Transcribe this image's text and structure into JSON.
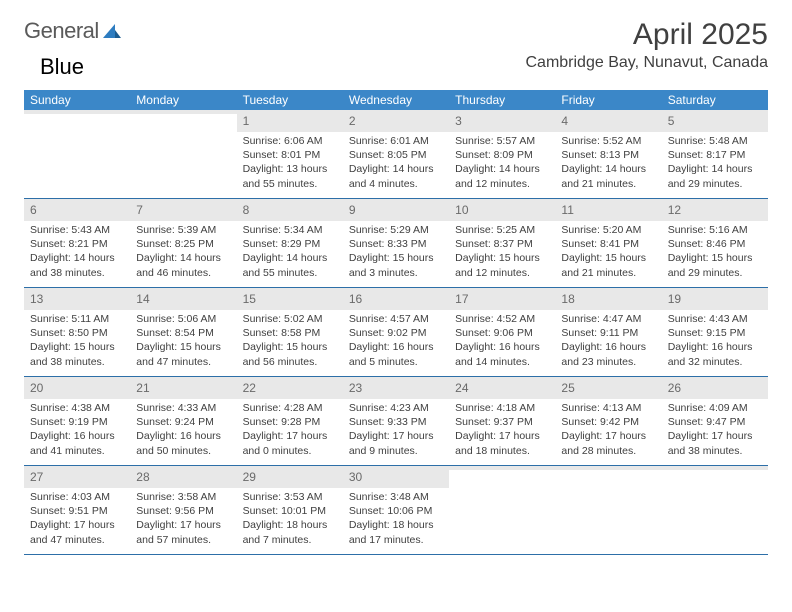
{
  "brand": {
    "part1": "General",
    "part2": "Blue"
  },
  "title": "April 2025",
  "location": "Cambridge Bay, Nunavut, Canada",
  "colors": {
    "header_bg": "#3b87c8",
    "header_text": "#ffffff",
    "num_bg": "#e8e8e8",
    "num_text": "#6a6a6a",
    "body_text": "#404040",
    "week_border": "#2d6fa8",
    "logo_gray": "#5a5a5a",
    "logo_blue": "#2d7cc0"
  },
  "day_names": [
    "Sunday",
    "Monday",
    "Tuesday",
    "Wednesday",
    "Thursday",
    "Friday",
    "Saturday"
  ],
  "weeks": [
    [
      {
        "empty": true
      },
      {
        "empty": true
      },
      {
        "num": "1",
        "sunrise": "Sunrise: 6:06 AM",
        "sunset": "Sunset: 8:01 PM",
        "daylight": "Daylight: 13 hours and 55 minutes."
      },
      {
        "num": "2",
        "sunrise": "Sunrise: 6:01 AM",
        "sunset": "Sunset: 8:05 PM",
        "daylight": "Daylight: 14 hours and 4 minutes."
      },
      {
        "num": "3",
        "sunrise": "Sunrise: 5:57 AM",
        "sunset": "Sunset: 8:09 PM",
        "daylight": "Daylight: 14 hours and 12 minutes."
      },
      {
        "num": "4",
        "sunrise": "Sunrise: 5:52 AM",
        "sunset": "Sunset: 8:13 PM",
        "daylight": "Daylight: 14 hours and 21 minutes."
      },
      {
        "num": "5",
        "sunrise": "Sunrise: 5:48 AM",
        "sunset": "Sunset: 8:17 PM",
        "daylight": "Daylight: 14 hours and 29 minutes."
      }
    ],
    [
      {
        "num": "6",
        "sunrise": "Sunrise: 5:43 AM",
        "sunset": "Sunset: 8:21 PM",
        "daylight": "Daylight: 14 hours and 38 minutes."
      },
      {
        "num": "7",
        "sunrise": "Sunrise: 5:39 AM",
        "sunset": "Sunset: 8:25 PM",
        "daylight": "Daylight: 14 hours and 46 minutes."
      },
      {
        "num": "8",
        "sunrise": "Sunrise: 5:34 AM",
        "sunset": "Sunset: 8:29 PM",
        "daylight": "Daylight: 14 hours and 55 minutes."
      },
      {
        "num": "9",
        "sunrise": "Sunrise: 5:29 AM",
        "sunset": "Sunset: 8:33 PM",
        "daylight": "Daylight: 15 hours and 3 minutes."
      },
      {
        "num": "10",
        "sunrise": "Sunrise: 5:25 AM",
        "sunset": "Sunset: 8:37 PM",
        "daylight": "Daylight: 15 hours and 12 minutes."
      },
      {
        "num": "11",
        "sunrise": "Sunrise: 5:20 AM",
        "sunset": "Sunset: 8:41 PM",
        "daylight": "Daylight: 15 hours and 21 minutes."
      },
      {
        "num": "12",
        "sunrise": "Sunrise: 5:16 AM",
        "sunset": "Sunset: 8:46 PM",
        "daylight": "Daylight: 15 hours and 29 minutes."
      }
    ],
    [
      {
        "num": "13",
        "sunrise": "Sunrise: 5:11 AM",
        "sunset": "Sunset: 8:50 PM",
        "daylight": "Daylight: 15 hours and 38 minutes."
      },
      {
        "num": "14",
        "sunrise": "Sunrise: 5:06 AM",
        "sunset": "Sunset: 8:54 PM",
        "daylight": "Daylight: 15 hours and 47 minutes."
      },
      {
        "num": "15",
        "sunrise": "Sunrise: 5:02 AM",
        "sunset": "Sunset: 8:58 PM",
        "daylight": "Daylight: 15 hours and 56 minutes."
      },
      {
        "num": "16",
        "sunrise": "Sunrise: 4:57 AM",
        "sunset": "Sunset: 9:02 PM",
        "daylight": "Daylight: 16 hours and 5 minutes."
      },
      {
        "num": "17",
        "sunrise": "Sunrise: 4:52 AM",
        "sunset": "Sunset: 9:06 PM",
        "daylight": "Daylight: 16 hours and 14 minutes."
      },
      {
        "num": "18",
        "sunrise": "Sunrise: 4:47 AM",
        "sunset": "Sunset: 9:11 PM",
        "daylight": "Daylight: 16 hours and 23 minutes."
      },
      {
        "num": "19",
        "sunrise": "Sunrise: 4:43 AM",
        "sunset": "Sunset: 9:15 PM",
        "daylight": "Daylight: 16 hours and 32 minutes."
      }
    ],
    [
      {
        "num": "20",
        "sunrise": "Sunrise: 4:38 AM",
        "sunset": "Sunset: 9:19 PM",
        "daylight": "Daylight: 16 hours and 41 minutes."
      },
      {
        "num": "21",
        "sunrise": "Sunrise: 4:33 AM",
        "sunset": "Sunset: 9:24 PM",
        "daylight": "Daylight: 16 hours and 50 minutes."
      },
      {
        "num": "22",
        "sunrise": "Sunrise: 4:28 AM",
        "sunset": "Sunset: 9:28 PM",
        "daylight": "Daylight: 17 hours and 0 minutes."
      },
      {
        "num": "23",
        "sunrise": "Sunrise: 4:23 AM",
        "sunset": "Sunset: 9:33 PM",
        "daylight": "Daylight: 17 hours and 9 minutes."
      },
      {
        "num": "24",
        "sunrise": "Sunrise: 4:18 AM",
        "sunset": "Sunset: 9:37 PM",
        "daylight": "Daylight: 17 hours and 18 minutes."
      },
      {
        "num": "25",
        "sunrise": "Sunrise: 4:13 AM",
        "sunset": "Sunset: 9:42 PM",
        "daylight": "Daylight: 17 hours and 28 minutes."
      },
      {
        "num": "26",
        "sunrise": "Sunrise: 4:09 AM",
        "sunset": "Sunset: 9:47 PM",
        "daylight": "Daylight: 17 hours and 38 minutes."
      }
    ],
    [
      {
        "num": "27",
        "sunrise": "Sunrise: 4:03 AM",
        "sunset": "Sunset: 9:51 PM",
        "daylight": "Daylight: 17 hours and 47 minutes."
      },
      {
        "num": "28",
        "sunrise": "Sunrise: 3:58 AM",
        "sunset": "Sunset: 9:56 PM",
        "daylight": "Daylight: 17 hours and 57 minutes."
      },
      {
        "num": "29",
        "sunrise": "Sunrise: 3:53 AM",
        "sunset": "Sunset: 10:01 PM",
        "daylight": "Daylight: 18 hours and 7 minutes."
      },
      {
        "num": "30",
        "sunrise": "Sunrise: 3:48 AM",
        "sunset": "Sunset: 10:06 PM",
        "daylight": "Daylight: 18 hours and 17 minutes."
      },
      {
        "empty": true
      },
      {
        "empty": true
      },
      {
        "empty": true
      }
    ]
  ]
}
